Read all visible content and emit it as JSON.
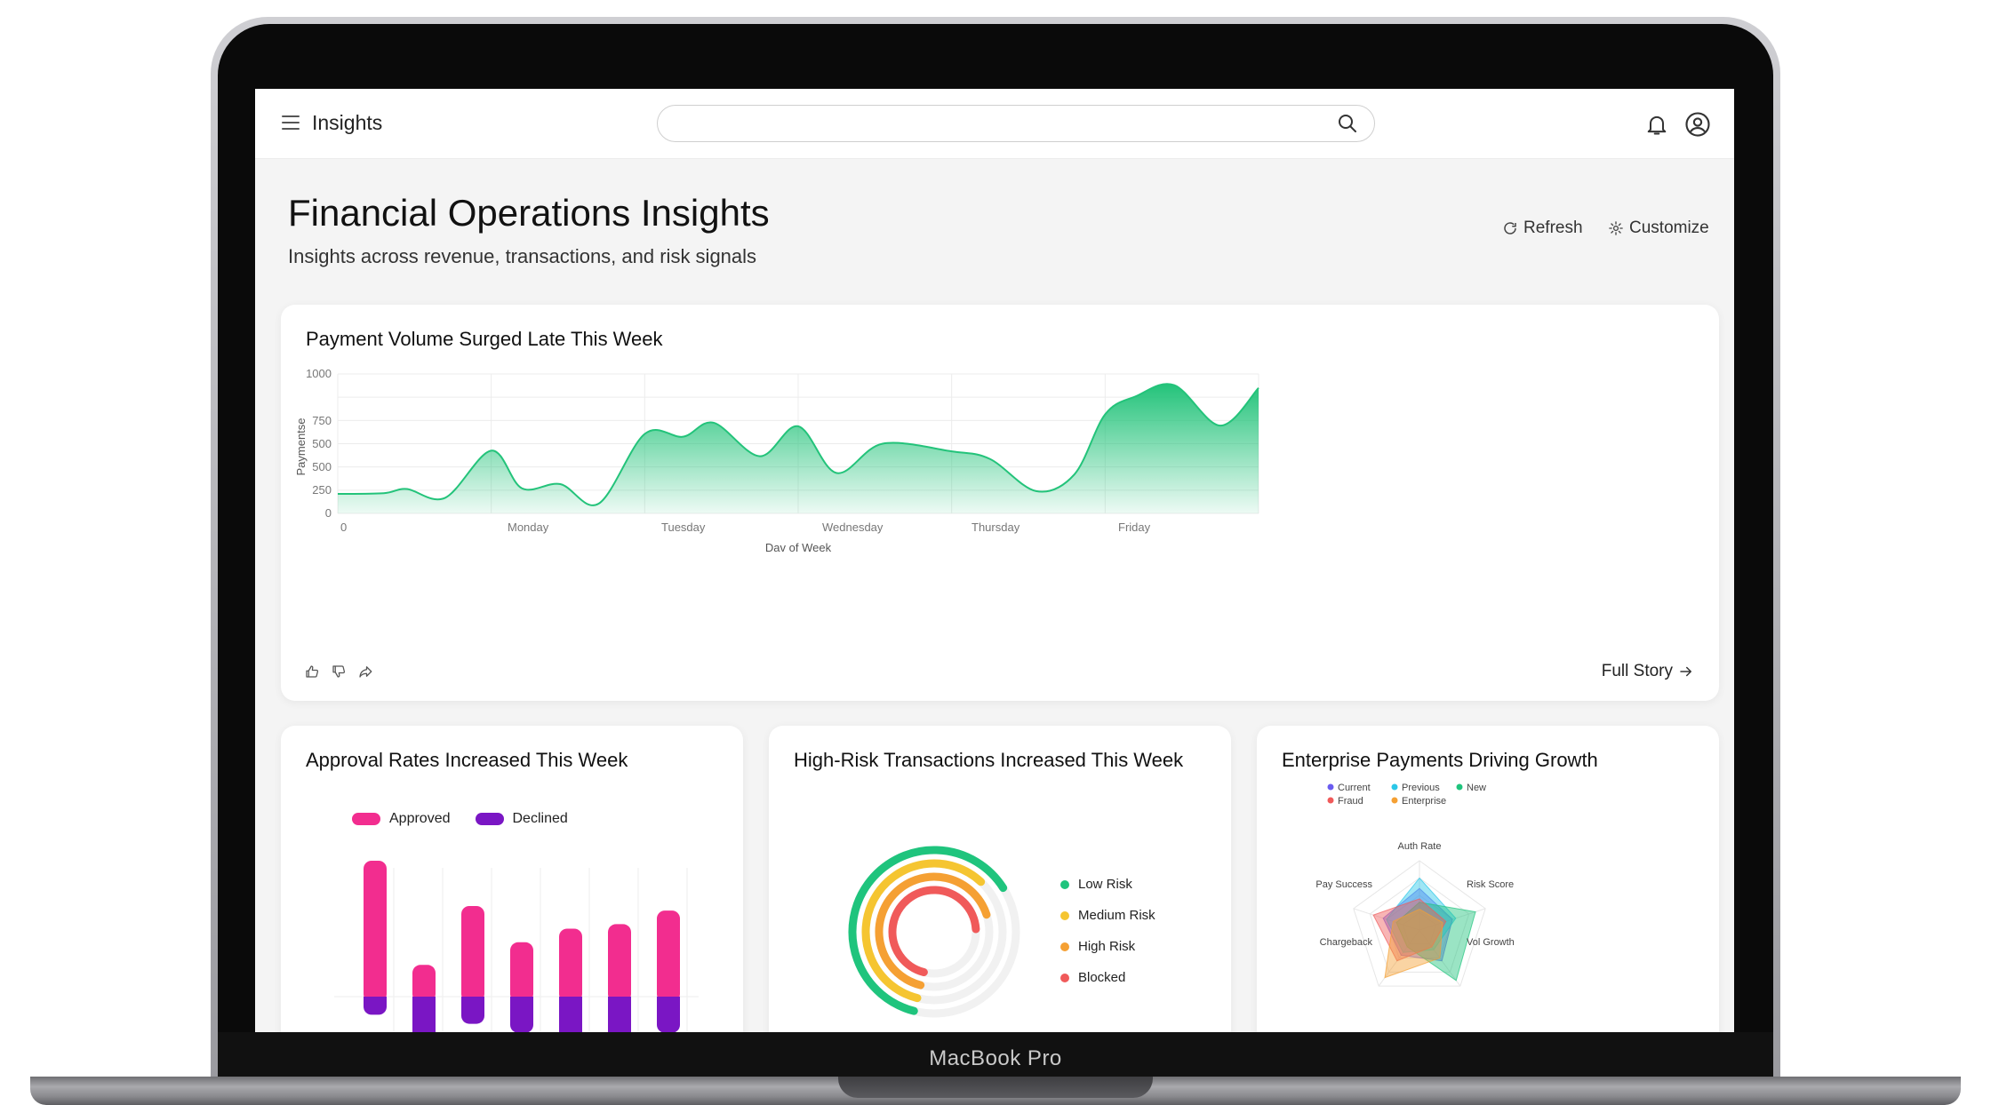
{
  "device": {
    "label": "MacBook Pro"
  },
  "appbar": {
    "title": "Insights",
    "search_placeholder": ""
  },
  "header": {
    "title": "Financial Operations Insights",
    "subtitle": "Insights across revenue, transactions, and risk signals",
    "refresh_label": "Refresh",
    "customize_label": "Customize"
  },
  "payment_card": {
    "title": "Payment Volume Surged Late This Week",
    "full_story_label": "Full Story"
  },
  "approval_card": {
    "title": "Approval Rates Increased This Week"
  },
  "risk_card": {
    "title": "High-Risk Transactions Increased This Week"
  },
  "enterprise_card": {
    "title": "Enterprise Payments Driving Growth"
  },
  "colors": {
    "green": "#23c37a",
    "pink": "#f22d8f",
    "purple": "#7a16c4",
    "low_risk": "#1fc47d",
    "medium_risk": "#f5c531",
    "high_risk": "#f5a033",
    "blocked": "#f05a5a"
  },
  "chart_data": [
    {
      "type": "area",
      "xlabel": "Dav of Week",
      "ylabel": "Paymentse",
      "x_tick_labels": [
        "0",
        "Monday",
        "Tuesday",
        "Wednesday",
        "Thursday",
        "Friday"
      ],
      "y_tick_labels": [
        "0",
        "250",
        "500",
        "500",
        "750",
        "1000"
      ],
      "ylim": [
        0,
        1000
      ],
      "xlim": [
        0,
        6
      ],
      "grid": true,
      "points": [
        [
          0,
          140
        ],
        [
          0.3,
          145
        ],
        [
          0.45,
          175
        ],
        [
          0.7,
          112
        ],
        [
          1,
          450
        ],
        [
          1.2,
          180
        ],
        [
          1.45,
          210
        ],
        [
          1.7,
          70
        ],
        [
          2,
          570
        ],
        [
          2.25,
          550
        ],
        [
          2.45,
          650
        ],
        [
          2.75,
          410
        ],
        [
          3,
          625
        ],
        [
          3.25,
          290
        ],
        [
          3.55,
          500
        ],
        [
          4,
          445
        ],
        [
          4.25,
          390
        ],
        [
          4.55,
          160
        ],
        [
          4.8,
          280
        ],
        [
          5,
          710
        ],
        [
          5.2,
          840
        ],
        [
          5.45,
          920
        ],
        [
          5.75,
          630
        ],
        [
          6,
          900
        ]
      ],
      "series": [
        {
          "values": [
            140,
            145,
            175,
            112,
            450,
            180,
            210,
            70,
            570,
            550,
            650,
            410,
            625,
            290,
            500,
            445,
            390,
            160,
            280,
            710,
            840,
            920,
            630,
            900
          ]
        }
      ]
    },
    {
      "type": "bar",
      "stacked": true,
      "legend": [
        "Approved",
        "Declined"
      ],
      "legend_position": "top-left",
      "series": [
        {
          "name": "Approved",
          "values": [
            60,
            14,
            40,
            24,
            30,
            32,
            38
          ]
        },
        {
          "name": "Declined",
          "values": [
            8,
            20,
            12,
            16,
            22,
            20,
            16
          ]
        }
      ]
    },
    {
      "type": "radial-bar",
      "legend": [
        "Low Risk",
        "Medium Risk",
        "High Risk",
        "Blocked"
      ],
      "legend_position": "right",
      "series": [
        {
          "name": "Low Risk",
          "values": [
            0.62
          ]
        },
        {
          "name": "Medium Risk",
          "values": [
            0.58
          ]
        },
        {
          "name": "High Risk",
          "values": [
            0.66
          ]
        },
        {
          "name": "Blocked",
          "values": [
            0.7
          ]
        }
      ]
    },
    {
      "type": "radar",
      "axes": [
        "Auth Rate",
        "Risk Score",
        "Vol Growth",
        "Chargeback",
        "Pay Success"
      ],
      "legend": [
        "Current",
        "Previous",
        "New",
        "Fraud",
        "Enterprise"
      ],
      "legend_position": "top",
      "series": [
        {
          "name": "Current",
          "values": [
            0.6,
            0.5,
            0.55,
            0.45,
            0.55
          ]
        },
        {
          "name": "Previous",
          "values": [
            0.75,
            0.55,
            0.35,
            0.4,
            0.5
          ]
        },
        {
          "name": "New",
          "values": [
            0.4,
            0.85,
            0.9,
            0.3,
            0.35
          ]
        },
        {
          "name": "Fraud",
          "values": [
            0.45,
            0.4,
            0.3,
            0.55,
            0.7
          ]
        },
        {
          "name": "Enterprise",
          "values": [
            0.3,
            0.35,
            0.5,
            0.85,
            0.4
          ]
        }
      ]
    }
  ]
}
